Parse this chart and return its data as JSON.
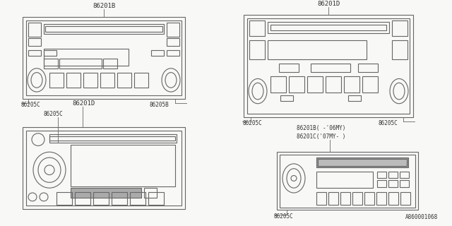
{
  "bg_color": "#f8f8f6",
  "line_color": "#666666",
  "text_color": "#333333",
  "ref_number": "A860001068",
  "labels": {
    "top_left_main": "86201B",
    "top_right_main": "86201D",
    "bottom_left_main": "86201D",
    "bottom_left_sub": "86205C",
    "bottom_right_main1": "86201B( -'06MY)",
    "bottom_right_main2": "86201C('07MY- )",
    "tl_bl": "86205C",
    "tl_br": "86205B",
    "tr_bl": "86205C",
    "tr_br": "86205C",
    "br_bl": "86205C"
  }
}
